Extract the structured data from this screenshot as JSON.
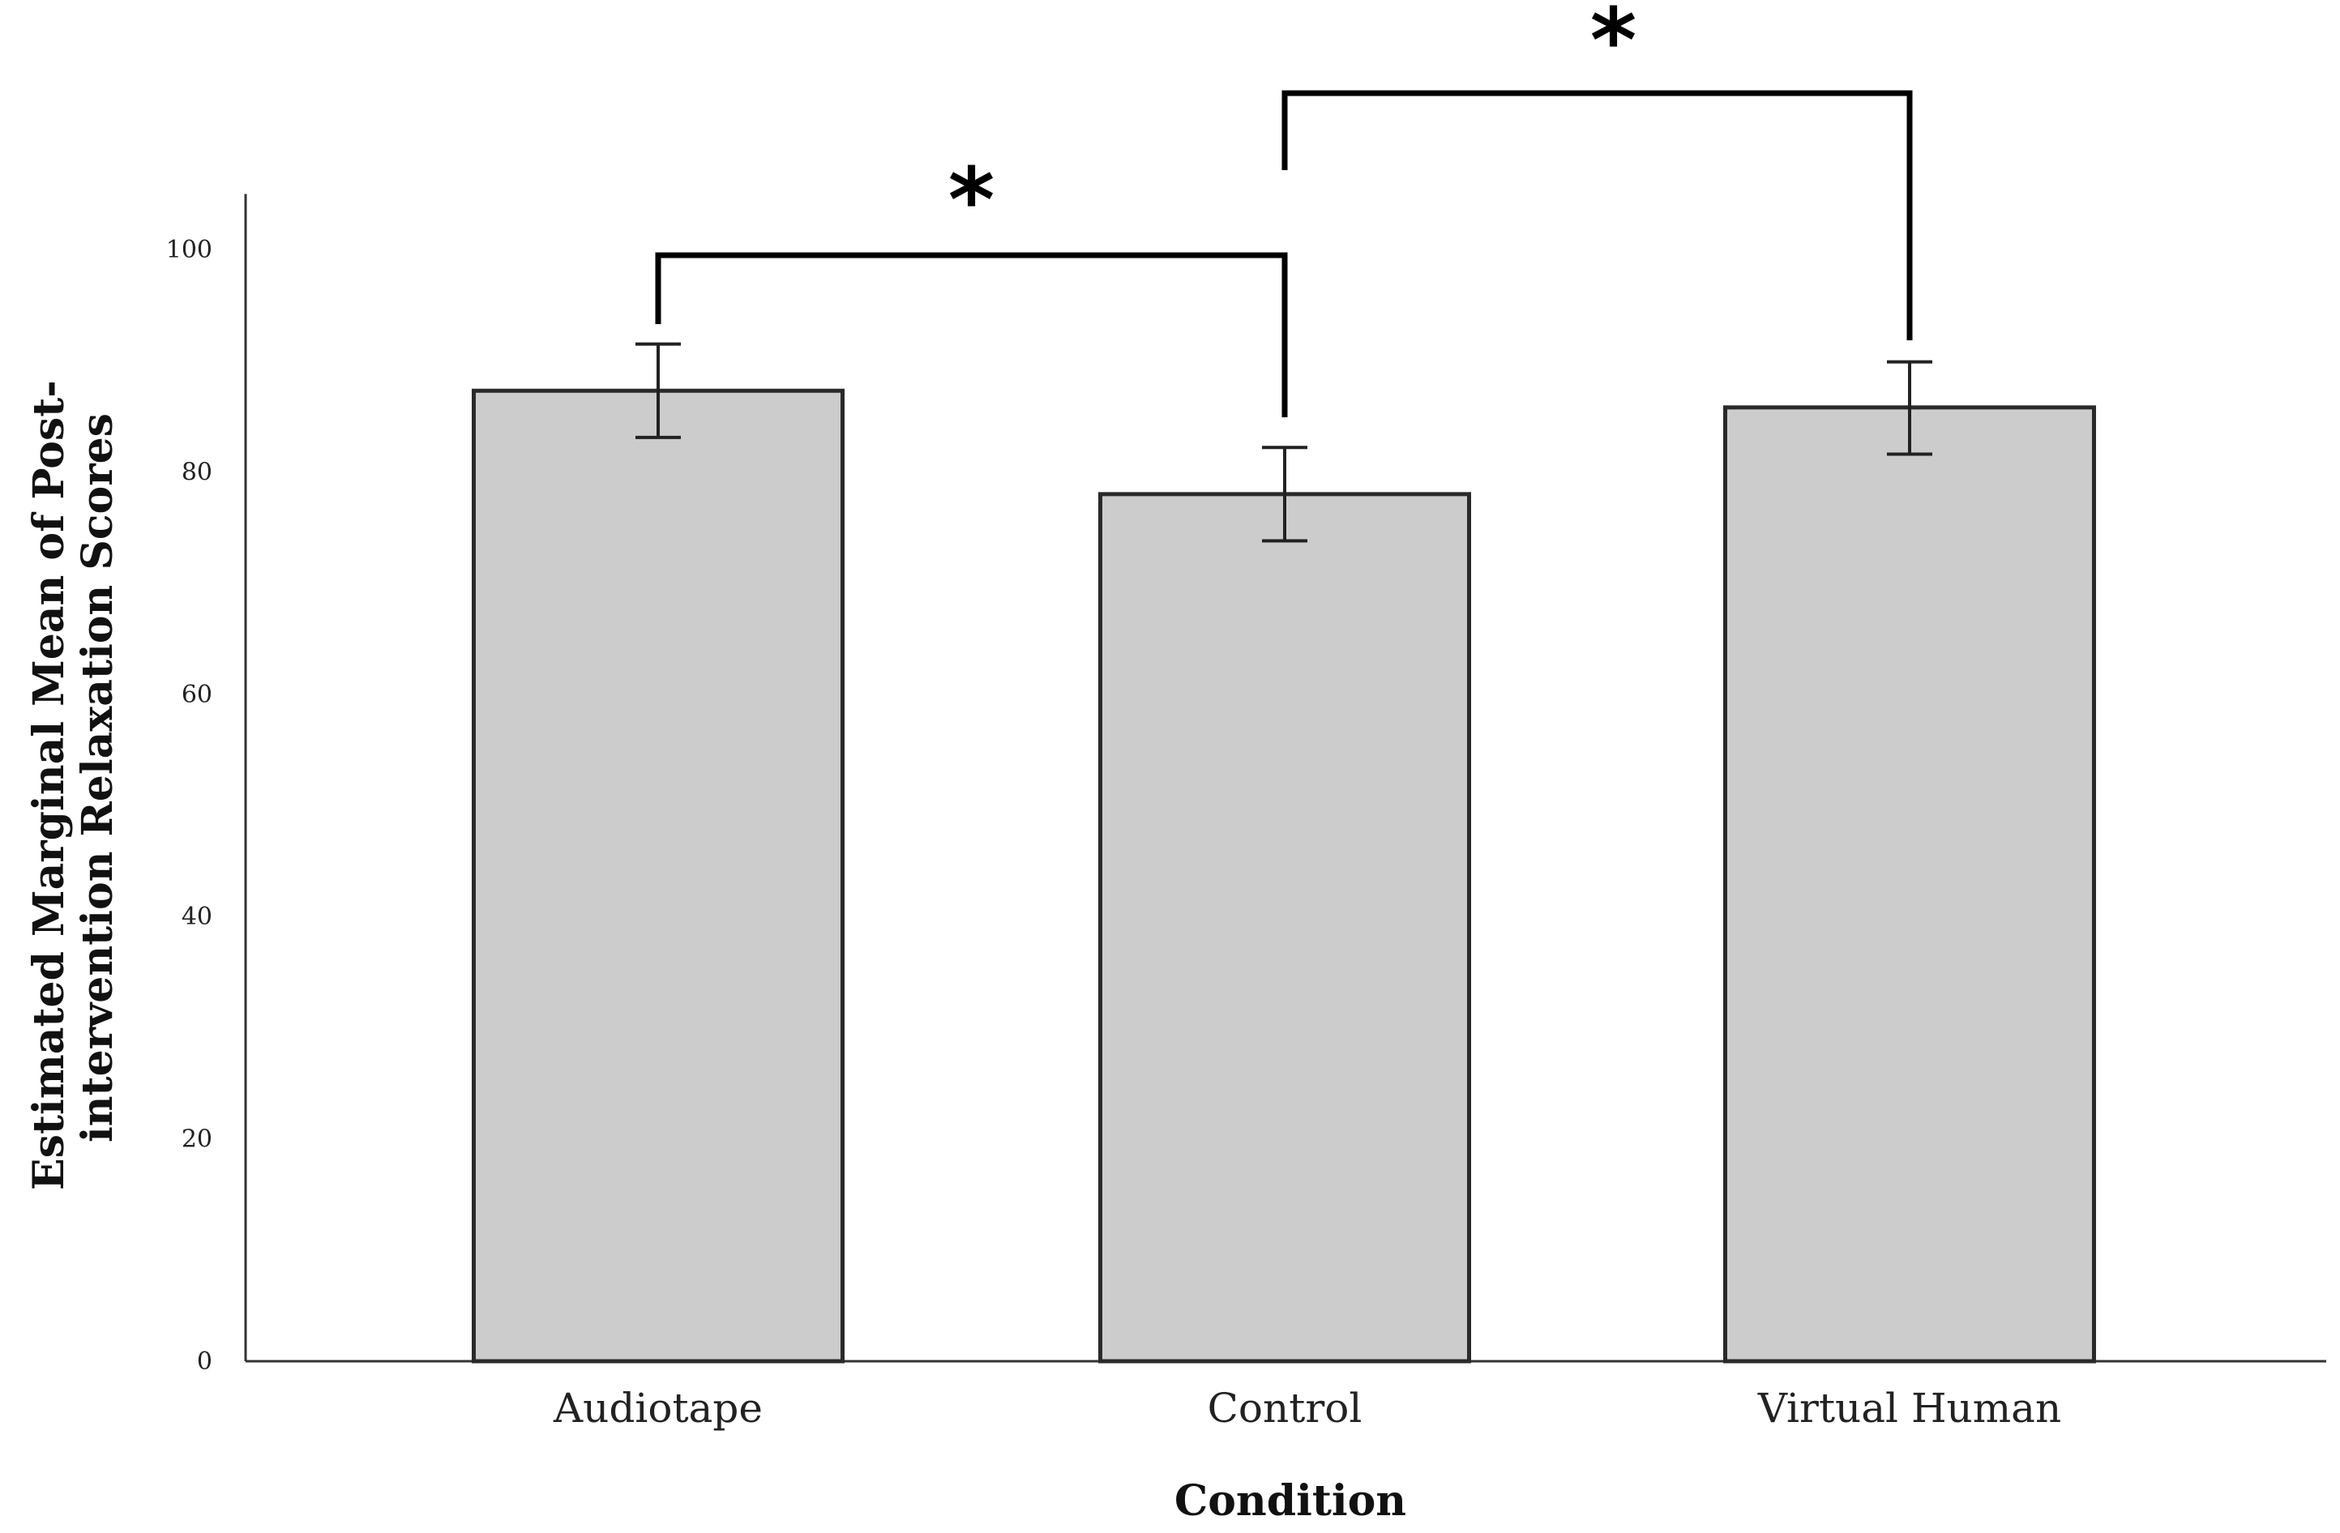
{
  "chart_data": {
    "type": "bar",
    "categories": [
      "Audiotape",
      "Control",
      "Virtual Human"
    ],
    "values": [
      87.3,
      78.0,
      85.8
    ],
    "error_bars": [
      {
        "lower": 83.1,
        "upper": 91.5
      },
      {
        "lower": 73.8,
        "upper": 82.2
      },
      {
        "lower": 81.6,
        "upper": 89.9
      }
    ],
    "xlabel": "Condition",
    "ylabel_lines": [
      "Estimated Marginal Mean of Post-",
      "intervention Relaxation Scores"
    ],
    "ylim": [
      0,
      105
    ],
    "yticks": [
      0,
      20,
      40,
      60,
      80,
      100
    ],
    "grid": false,
    "significance": [
      {
        "from": "Audiotape",
        "to": "Control",
        "label": "*"
      },
      {
        "from": "Control",
        "to": "Virtual Human",
        "label": "*"
      }
    ],
    "colors": {
      "bar_fill": "#cccccc",
      "bar_stroke": "#2a2a2a",
      "axis": "#333333",
      "error_bar": "#222222",
      "bracket": "#000000"
    }
  }
}
